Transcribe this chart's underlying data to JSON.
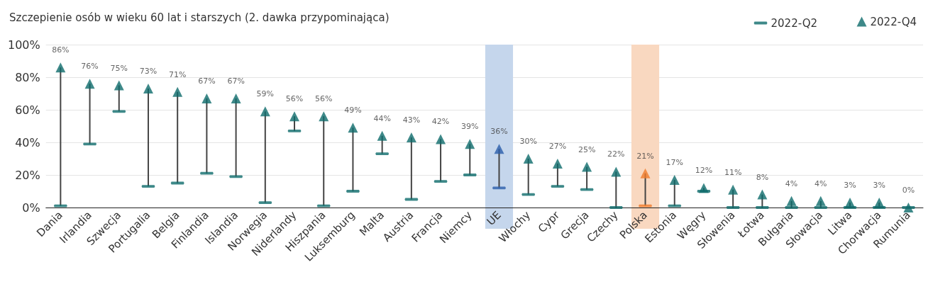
{
  "chart_data": {
    "type": "scatter",
    "title": "Szczepienie osób w wieku 60 lat i starszych (2. dawka przypominająca)",
    "categories": [
      "Dania",
      "Irlandia",
      "Szwecja",
      "Portugalia",
      "Belgia",
      "Finlandia",
      "Islandia",
      "Norwegia",
      "Niderlandy",
      "Hiszpania",
      "Luksemburg",
      "Malta",
      "Austria",
      "Francja",
      "Niemcy",
      "UE",
      "Włochy",
      "Cypr",
      "Grecja",
      "Czechy",
      "Polska",
      "Estonia",
      "Węgry",
      "Słowenia",
      "Łotwa",
      "Bułgaria",
      "Słowacja",
      "Litwa",
      "Chorwacja",
      "Rumunia"
    ],
    "series": [
      {
        "name": "2022-Q2",
        "color": "#0e6b6b",
        "values": [
          1,
          39,
          59,
          13,
          15,
          21,
          19,
          3,
          47,
          1,
          10,
          33,
          5,
          16,
          20,
          12,
          8,
          13,
          11,
          0,
          1,
          1,
          10,
          0,
          0,
          0,
          0,
          0,
          0,
          0
        ],
        "colors": [
          "#0e6b6b",
          "#0e6b6b",
          "#0e6b6b",
          "#0e6b6b",
          "#0e6b6b",
          "#0e6b6b",
          "#0e6b6b",
          "#0e6b6b",
          "#0e6b6b",
          "#0e6b6b",
          "#0e6b6b",
          "#0e6b6b",
          "#0e6b6b",
          "#0e6b6b",
          "#0e6b6b",
          "#2a5eab",
          "#0e6b6b",
          "#0e6b6b",
          "#0e6b6b",
          "#0e6b6b",
          "#f07c2a",
          "#0e6b6b",
          "#0e6b6b",
          "#0e6b6b",
          "#0e6b6b",
          "#0e6b6b",
          "#0e6b6b",
          "#0e6b6b",
          "#0e6b6b",
          "#0e6b6b"
        ]
      },
      {
        "name": "2022-Q4",
        "color": "#0e6b6b",
        "marker": "triangle",
        "values": [
          86,
          76,
          75,
          73,
          71,
          67,
          67,
          59,
          56,
          56,
          49,
          44,
          43,
          42,
          39,
          36,
          30,
          27,
          25,
          22,
          21,
          17,
          12,
          11,
          8,
          4,
          4,
          3,
          3,
          0
        ],
        "colors": [
          "#0e6b6b",
          "#0e6b6b",
          "#0e6b6b",
          "#0e6b6b",
          "#0e6b6b",
          "#0e6b6b",
          "#0e6b6b",
          "#0e6b6b",
          "#0e6b6b",
          "#0e6b6b",
          "#0e6b6b",
          "#0e6b6b",
          "#0e6b6b",
          "#0e6b6b",
          "#0e6b6b",
          "#2a5eab",
          "#0e6b6b",
          "#0e6b6b",
          "#0e6b6b",
          "#0e6b6b",
          "#f07c2a",
          "#0e6b6b",
          "#0e6b6b",
          "#0e6b6b",
          "#0e6b6b",
          "#0e6b6b",
          "#0e6b6b",
          "#0e6b6b",
          "#0e6b6b",
          "#0e6b6b"
        ],
        "value_labels": [
          "86%",
          "76%",
          "75%",
          "73%",
          "71%",
          "67%",
          "67%",
          "59%",
          "56%",
          "56%",
          "49%",
          "44%",
          "43%",
          "42%",
          "39%",
          "36%",
          "30%",
          "27%",
          "25%",
          "22%",
          "21%",
          "17%",
          "12%",
          "11%",
          "8%",
          "4%",
          "4%",
          "3%",
          "3%",
          "0%"
        ]
      }
    ],
    "bands": [
      {
        "axis": "x",
        "from": "UE",
        "to": "UE",
        "color": "#c5d6ec"
      },
      {
        "axis": "x",
        "from": "Polska",
        "to": "Polska",
        "color": "#f9d8c0"
      }
    ],
    "ylim": [
      0,
      100
    ],
    "yticks": [
      {
        "value": 0,
        "label": "0%"
      },
      {
        "value": 20,
        "label": "20%"
      },
      {
        "value": 40,
        "label": "40%"
      },
      {
        "value": 60,
        "label": "60%"
      },
      {
        "value": 80,
        "label": "80%"
      },
      {
        "value": 100,
        "label": "100%"
      }
    ],
    "grid": "y",
    "legend": "top right"
  }
}
